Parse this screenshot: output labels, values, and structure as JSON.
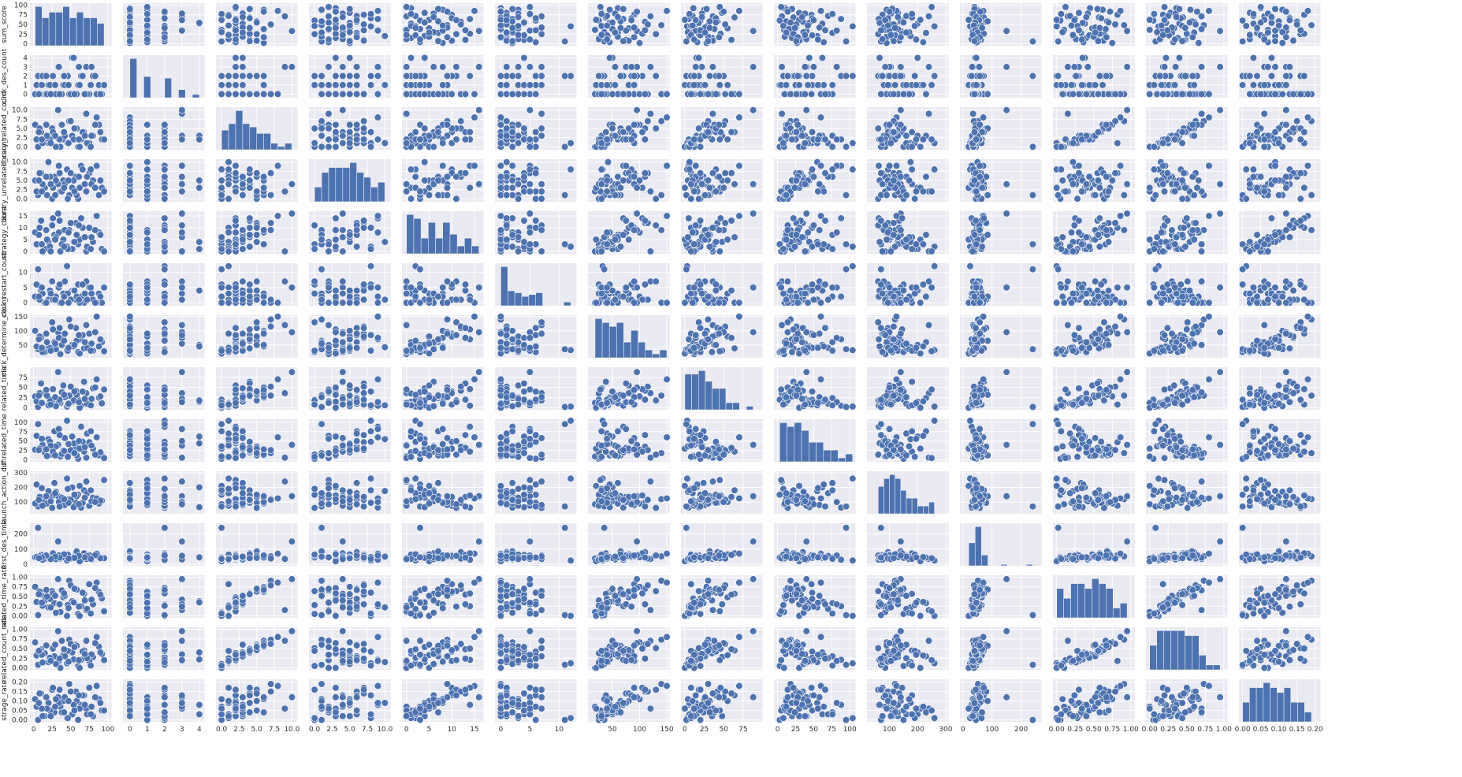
{
  "chart_data": {
    "type": "scatter",
    "kind": "pairplot",
    "diagonal": "histogram",
    "point_color": "#4c72b0",
    "background_color": "#eaeaf2",
    "grid": true,
    "variables": [
      {
        "name": "sum_score",
        "ticks": [
          "0",
          "25",
          "50",
          "75",
          "100"
        ],
        "tick_values": [
          0,
          25,
          50,
          75,
          100
        ],
        "range": [
          -5,
          105
        ]
      },
      {
        "name": "click_des_count",
        "ticks": [
          "0",
          "1",
          "2",
          "3",
          "4"
        ],
        "tick_values": [
          0,
          1,
          2,
          3,
          4
        ],
        "range": [
          -0.4,
          4.3
        ]
      },
      {
        "name": "library_related_count",
        "ticks": [
          "0.0",
          "2.5",
          "5.0",
          "7.5",
          "10.0"
        ],
        "tick_values": [
          0,
          2.5,
          5,
          7.5,
          10
        ],
        "range": [
          -0.8,
          10.8
        ]
      },
      {
        "name": "library_unrelated_count",
        "ticks": [
          "0.0",
          "2.5",
          "5.0",
          "7.5",
          "10.0"
        ],
        "tick_values": [
          0,
          2.5,
          5,
          7.5,
          10
        ],
        "range": [
          -0.8,
          10.8
        ]
      },
      {
        "name": "strategy_count",
        "ticks": [
          "0",
          "5",
          "10",
          "15"
        ],
        "tick_values": [
          0,
          5,
          10,
          15
        ],
        "range": [
          -1,
          17
        ]
      },
      {
        "name": "click_restart_count",
        "ticks": [
          "0",
          "5",
          "10"
        ],
        "tick_values": [
          0,
          5,
          10
        ],
        "range": [
          -1,
          13
        ]
      },
      {
        "name": "click_determine_count",
        "ticks": [
          "50",
          "100",
          "150"
        ],
        "tick_values": [
          50,
          100,
          150
        ],
        "range": [
          5,
          155
        ]
      },
      {
        "name": "related_time",
        "ticks": [
          "0",
          "25",
          "50",
          "75"
        ],
        "tick_values": [
          0,
          25,
          50,
          75
        ],
        "range": [
          -5,
          100
        ]
      },
      {
        "name": "unrelated_time",
        "ticks": [
          "0",
          "25",
          "50",
          "75",
          "100"
        ],
        "tick_values": [
          0,
          25,
          50,
          75,
          100
        ],
        "range": [
          -5,
          108
        ]
      },
      {
        "name": "launch_action_diff",
        "ticks": [
          "100",
          "200",
          "300"
        ],
        "tick_values": [
          100,
          200,
          300
        ],
        "range": [
          20,
          310
        ]
      },
      {
        "name": "first_des_time",
        "ticks": [
          "0",
          "100",
          "200"
        ],
        "tick_values": [
          0,
          100,
          200
        ],
        "range": [
          -10,
          270
        ]
      },
      {
        "name": "related_time_rate",
        "ticks": [
          "0.00",
          "0.25",
          "0.50",
          "0.75",
          "1.00"
        ],
        "tick_values": [
          0,
          0.25,
          0.5,
          0.75,
          1
        ],
        "range": [
          -0.05,
          1.05
        ]
      },
      {
        "name": "related_count_rate",
        "ticks": [
          "0.00",
          "0.25",
          "0.50",
          "0.75",
          "1.00"
        ],
        "tick_values": [
          0,
          0.25,
          0.5,
          0.75,
          1
        ],
        "range": [
          -0.05,
          1.05
        ]
      },
      {
        "name": "strage_rate",
        "ticks": [
          "0.00",
          "0.05",
          "0.10",
          "0.15",
          "0.20"
        ],
        "tick_values": [
          0,
          0.05,
          0.1,
          0.15,
          0.2
        ],
        "range": [
          -0.01,
          0.215
        ]
      }
    ],
    "observations": [
      [
        92,
        0,
        2,
        3,
        1,
        0,
        60,
        11,
        11,
        110,
        40,
        0.45,
        0.36,
        0.05
      ],
      [
        88,
        1,
        6,
        1,
        8,
        3,
        45,
        25,
        12,
        90,
        48,
        0.62,
        0.55,
        0.11
      ],
      [
        80,
        2,
        3,
        5,
        4,
        1,
        30,
        48,
        30,
        130,
        55,
        0.3,
        0.28,
        0.02
      ],
      [
        75,
        0,
        1,
        7,
        10,
        5,
        90,
        8,
        47,
        75,
        60,
        0.82,
        0.18,
        0.17
      ],
      [
        71,
        3,
        9,
        2,
        0,
        7,
        120,
        36,
        6,
        240,
        35,
        0.15,
        0.7,
        0.06
      ],
      [
        68,
        0,
        4,
        4,
        6,
        0,
        38,
        64,
        22,
        180,
        72,
        0.57,
        0.45,
        0.13
      ],
      [
        64,
        2,
        2,
        9,
        14,
        2,
        70,
        5,
        88,
        62,
        30,
        0.25,
        0.21,
        0.08
      ],
      [
        60,
        1,
        0,
        0,
        3,
        6,
        25,
        20,
        3,
        150,
        45,
        0.05,
        0.05,
        0.0
      ],
      [
        57,
        0,
        5,
        6,
        12,
        1,
        110,
        42,
        35,
        95,
        80,
        0.7,
        0.6,
        0.15
      ],
      [
        52,
        4,
        3,
        3,
        1,
        4,
        50,
        15,
        62,
        200,
        42,
        0.38,
        0.4,
        0.03
      ],
      [
        48,
        0,
        7,
        1,
        9,
        0,
        140,
        30,
        18,
        120,
        52,
        0.91,
        0.73,
        0.19
      ],
      [
        45,
        2,
        1,
        8,
        2,
        12,
        32,
        3,
        104,
        260,
        25,
        0.0,
        0.12,
        0.01
      ],
      [
        40,
        1,
        2,
        5,
        5,
        3,
        80,
        55,
        25,
        100,
        65,
        0.48,
        0.33,
        0.1
      ],
      [
        36,
        0,
        0,
        2,
        0,
        0,
        18,
        12,
        9,
        85,
        38,
        0.1,
        0.0,
        0.07
      ],
      [
        33,
        3,
        10,
        4,
        16,
        5,
        95,
        88,
        40,
        140,
        150,
        0.95,
        0.95,
        0.12
      ],
      [
        28,
        0,
        3,
        6,
        7,
        2,
        60,
        24,
        76,
        230,
        44,
        0.33,
        0.3,
        0.04
      ],
      [
        25,
        2,
        5,
        0,
        11,
        7,
        130,
        18,
        14,
        60,
        58,
        0.64,
        0.51,
        0.16
      ],
      [
        20,
        1,
        1,
        10,
        4,
        1,
        42,
        6,
        55,
        175,
        50,
        0.22,
        0.15,
        0.09
      ],
      [
        15,
        0,
        2,
        3,
        1,
        0,
        25,
        35,
        20,
        110,
        36,
        0.4,
        0.38,
        0.02
      ],
      [
        10,
        0,
        4,
        7,
        13,
        4,
        75,
        60,
        32,
        135,
        62,
        0.55,
        0.48,
        0.14
      ],
      [
        6,
        2,
        0,
        1,
        3,
        11,
        35,
        2,
        95,
        70,
        240,
        0.02,
        0.08,
        0.0
      ],
      [
        2,
        0,
        6,
        5,
        8,
        2,
        100,
        28,
        27,
        90,
        46,
        0.75,
        0.66,
        0.11
      ],
      [
        95,
        1,
        2,
        2,
        0,
        5,
        28,
        45,
        5,
        250,
        40,
        0.12,
        0.2,
        0.05
      ],
      [
        85,
        0,
        8,
        9,
        15,
        0,
        150,
        70,
        60,
        125,
        70,
        0.86,
        0.8,
        0.18
      ],
      [
        78,
        3,
        3,
        4,
        6,
        3,
        55,
        22,
        38,
        105,
        32,
        0.42,
        0.35,
        0.07
      ],
      [
        72,
        0,
        1,
        6,
        2,
        1,
        40,
        10,
        70,
        160,
        55,
        0.18,
        0.25,
        0.03
      ],
      [
        66,
        2,
        4,
        8,
        10,
        6,
        85,
        40,
        48,
        95,
        48,
        0.6,
        0.42,
        0.13
      ],
      [
        62,
        1,
        0,
        3,
        5,
        0,
        20,
        0,
        30,
        210,
        20,
        0.0,
        0.0,
        0.06
      ],
      [
        58,
        0,
        5,
        1,
        7,
        2,
        65,
        32,
        12,
        140,
        85,
        0.68,
        0.57,
        0.1
      ],
      [
        54,
        4,
        2,
        5,
        4,
        4,
        45,
        18,
        44,
        65,
        46,
        0.35,
        0.22,
        0.08
      ],
      [
        50,
        0,
        7,
        7,
        12,
        1,
        115,
        52,
        26,
        115,
        38,
        0.79,
        0.62,
        0.15
      ],
      [
        46,
        2,
        1,
        0,
        1,
        3,
        30,
        8,
        8,
        190,
        64,
        0.28,
        0.44,
        0.01
      ],
      [
        42,
        1,
        3,
        4,
        9,
        7,
        90,
        26,
        58,
        80,
        52,
        0.52,
        0.3,
        0.12
      ],
      [
        38,
        0,
        6,
        2,
        3,
        0,
        50,
        38,
        16,
        130,
        44,
        0.66,
        0.7,
        0.04
      ],
      [
        34,
        3,
        2,
        9,
        8,
        5,
        75,
        14,
        82,
        100,
        58,
        0.3,
        0.18,
        0.09
      ],
      [
        30,
        0,
        0,
        5,
        6,
        2,
        35,
        4,
        36,
        170,
        34,
        0.08,
        0.1,
        0.11
      ],
      [
        26,
        2,
        4,
        3,
        14,
        1,
        105,
        46,
        22,
        145,
        72,
        0.58,
        0.5,
        0.17
      ],
      [
        22,
        1,
        2,
        6,
        2,
        4,
        40,
        20,
        48,
        120,
        42,
        0.44,
        0.26,
        0.05
      ],
      [
        18,
        0,
        3,
        1,
        5,
        0,
        60,
        30,
        10,
        90,
        50,
        0.5,
        0.58,
        0.06
      ],
      [
        12,
        2,
        1,
        4,
        0,
        3,
        25,
        12,
        40,
        75,
        30,
        0.26,
        0.14,
        0.02
      ],
      [
        8,
        0,
        5,
        7,
        10,
        1,
        80,
        36,
        30,
        135,
        54,
        0.63,
        0.46,
        0.14
      ],
      [
        4,
        1,
        2,
        2,
        3,
        6,
        45,
        16,
        64,
        220,
        48,
        0.36,
        0.32,
        0.07
      ],
      [
        90,
        0,
        4,
        5,
        7,
        2,
        70,
        28,
        20,
        110,
        40,
        0.55,
        0.4,
        0.09
      ],
      [
        83,
        2,
        6,
        3,
        9,
        0,
        95,
        50,
        14,
        100,
        60,
        0.72,
        0.64,
        0.12
      ],
      [
        77,
        1,
        0,
        8,
        1,
        5,
        30,
        6,
        76,
        180,
        36,
        0.06,
        0.06,
        0.03
      ],
      [
        69,
        0,
        3,
        4,
        6,
        3,
        60,
        22,
        34,
        130,
        46,
        0.4,
        0.36,
        0.08
      ],
      [
        61,
        3,
        2,
        6,
        11,
        1,
        85,
        14,
        50,
        85,
        56,
        0.24,
        0.2,
        0.13
      ],
      [
        55,
        0,
        5,
        2,
        4,
        4,
        50,
        40,
        18,
        150,
        42,
        0.7,
        0.54,
        0.05
      ],
      [
        47,
        1,
        1,
        5,
        8,
        0,
        40,
        10,
        42,
        95,
        38,
        0.2,
        0.16,
        0.1
      ],
      [
        41,
        2,
        4,
        3,
        2,
        2,
        65,
        32,
        24,
        120,
        66,
        0.58,
        0.48,
        0.04
      ],
      [
        35,
        0,
        2,
        7,
        13,
        6,
        110,
        20,
        66,
        70,
        44,
        0.3,
        0.24,
        0.16
      ],
      [
        29,
        1,
        3,
        1,
        5,
        1,
        55,
        26,
        12,
        160,
        50,
        0.52,
        0.6,
        0.07
      ],
      [
        23,
        0,
        1,
        4,
        0,
        3,
        30,
        8,
        38,
        105,
        34,
        0.22,
        0.18,
        0.02
      ],
      [
        17,
        2,
        6,
        6,
        9,
        0,
        90,
        44,
        28,
        140,
        58,
        0.67,
        0.58,
        0.12
      ],
      [
        11,
        1,
        2,
        2,
        3,
        5,
        40,
        12,
        56,
        195,
        46,
        0.34,
        0.34,
        0.06
      ],
      [
        7,
        0,
        4,
        5,
        7,
        2,
        70,
        30,
        26,
        115,
        40,
        0.56,
        0.44,
        0.09
      ]
    ]
  }
}
